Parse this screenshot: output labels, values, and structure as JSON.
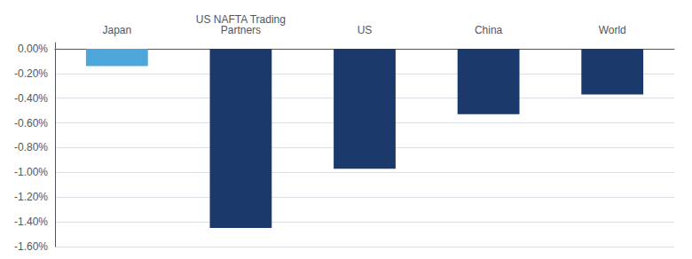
{
  "chart_data": {
    "type": "bar",
    "categories": [
      "Japan",
      "US NAFTA Trading\nPartners",
      "US",
      "China",
      "World"
    ],
    "values": [
      -0.14,
      -1.45,
      -0.97,
      -0.53,
      -0.37
    ],
    "colors": [
      "#4da6d9",
      "#1b3a6b",
      "#1b3a6b",
      "#1b3a6b",
      "#1b3a6b"
    ],
    "ylim": [
      -1.6,
      0.05
    ],
    "yticks": [
      {
        "value": 0.0,
        "label": "0.00%"
      },
      {
        "value": -0.2,
        "label": "-0.20%"
      },
      {
        "value": -0.4,
        "label": "-0.40%"
      },
      {
        "value": -0.6,
        "label": "-0.60%"
      },
      {
        "value": -0.8,
        "label": "-0.80%"
      },
      {
        "value": -1.0,
        "label": "-1.00%"
      },
      {
        "value": -1.2,
        "label": "-1.20%"
      },
      {
        "value": -1.4,
        "label": "-1.40%"
      },
      {
        "value": -1.6,
        "label": "-1.60%"
      }
    ],
    "grid": true
  }
}
